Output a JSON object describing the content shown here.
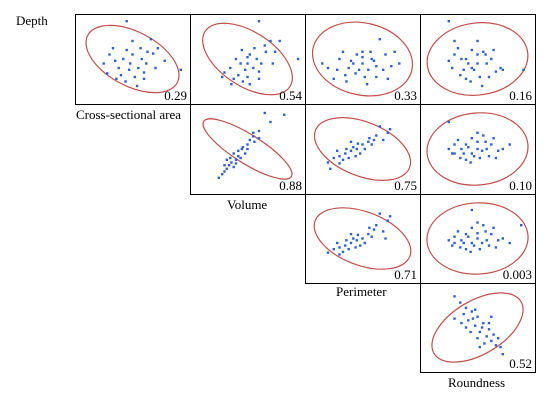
{
  "chart_data": {
    "type": "scatter",
    "title": "",
    "layout": "upper-triangular scatterplot matrix",
    "variables": [
      "Depth",
      "Cross-sectional area",
      "Volume",
      "Perimeter",
      "Roundness"
    ],
    "ellipse_color": "#c0504d",
    "point_color": "#2f5fd0",
    "panels": [
      {
        "row": "Depth",
        "col": "Cross-sectional area",
        "value": "0.29",
        "tilt": -0.6,
        "pts": [
          [
            0.45,
            0.08
          ],
          [
            0.63,
            0.42
          ],
          [
            0.35,
            0.52
          ],
          [
            0.48,
            0.55
          ],
          [
            0.55,
            0.6
          ],
          [
            0.4,
            0.68
          ],
          [
            0.6,
            0.72
          ],
          [
            0.3,
            0.45
          ],
          [
            0.66,
            0.28
          ],
          [
            0.5,
            0.3
          ],
          [
            0.28,
            0.66
          ],
          [
            0.7,
            0.6
          ],
          [
            0.45,
            0.4
          ],
          [
            0.58,
            0.5
          ],
          [
            0.38,
            0.6
          ],
          [
            0.52,
            0.7
          ],
          [
            0.62,
            0.55
          ],
          [
            0.33,
            0.38
          ],
          [
            0.47,
            0.62
          ],
          [
            0.57,
            0.38
          ],
          [
            0.42,
            0.5
          ],
          [
            0.5,
            0.45
          ],
          [
            0.36,
            0.72
          ],
          [
            0.68,
            0.44
          ],
          [
            0.25,
            0.55
          ],
          [
            0.54,
            0.8
          ],
          [
            0.44,
            0.75
          ],
          [
            0.6,
            0.65
          ],
          [
            0.72,
            0.38
          ],
          [
            0.78,
            0.52
          ],
          [
            0.92,
            0.62
          ]
        ]
      },
      {
        "row": "Depth",
        "col": "Volume",
        "value": "0.54",
        "tilt": -0.75,
        "pts": [
          [
            0.6,
            0.08
          ],
          [
            0.65,
            0.35
          ],
          [
            0.4,
            0.5
          ],
          [
            0.5,
            0.55
          ],
          [
            0.55,
            0.6
          ],
          [
            0.42,
            0.68
          ],
          [
            0.6,
            0.72
          ],
          [
            0.35,
            0.6
          ],
          [
            0.7,
            0.3
          ],
          [
            0.52,
            0.45
          ],
          [
            0.3,
            0.65
          ],
          [
            0.72,
            0.55
          ],
          [
            0.45,
            0.4
          ],
          [
            0.58,
            0.5
          ],
          [
            0.38,
            0.72
          ],
          [
            0.5,
            0.7
          ],
          [
            0.62,
            0.55
          ],
          [
            0.48,
            0.62
          ],
          [
            0.56,
            0.38
          ],
          [
            0.44,
            0.55
          ],
          [
            0.5,
            0.48
          ],
          [
            0.36,
            0.78
          ],
          [
            0.66,
            0.42
          ],
          [
            0.28,
            0.7
          ],
          [
            0.52,
            0.78
          ],
          [
            0.46,
            0.75
          ],
          [
            0.6,
            0.64
          ],
          [
            0.74,
            0.42
          ],
          [
            0.78,
            0.3
          ],
          [
            0.94,
            0.5
          ]
        ]
      },
      {
        "row": "Depth",
        "col": "Perimeter",
        "value": "0.33",
        "tilt": -0.25,
        "pts": [
          [
            0.65,
            0.28
          ],
          [
            0.3,
            0.5
          ],
          [
            0.4,
            0.52
          ],
          [
            0.5,
            0.55
          ],
          [
            0.55,
            0.62
          ],
          [
            0.35,
            0.68
          ],
          [
            0.62,
            0.7
          ],
          [
            0.28,
            0.62
          ],
          [
            0.7,
            0.45
          ],
          [
            0.5,
            0.42
          ],
          [
            0.25,
            0.72
          ],
          [
            0.75,
            0.58
          ],
          [
            0.45,
            0.45
          ],
          [
            0.58,
            0.5
          ],
          [
            0.38,
            0.6
          ],
          [
            0.52,
            0.7
          ],
          [
            0.62,
            0.58
          ],
          [
            0.33,
            0.42
          ],
          [
            0.47,
            0.62
          ],
          [
            0.57,
            0.42
          ],
          [
            0.42,
            0.55
          ],
          [
            0.5,
            0.48
          ],
          [
            0.36,
            0.75
          ],
          [
            0.68,
            0.62
          ],
          [
            0.2,
            0.6
          ],
          [
            0.54,
            0.78
          ],
          [
            0.44,
            0.66
          ],
          [
            0.6,
            0.52
          ],
          [
            0.72,
            0.72
          ],
          [
            0.78,
            0.42
          ],
          [
            0.82,
            0.55
          ],
          [
            0.15,
            0.55
          ]
        ]
      },
      {
        "row": "Depth",
        "col": "Roundness",
        "value": "0.16",
        "tilt": 0.15,
        "pts": [
          [
            0.25,
            0.08
          ],
          [
            0.55,
            0.42
          ],
          [
            0.4,
            0.5
          ],
          [
            0.5,
            0.55
          ],
          [
            0.45,
            0.6
          ],
          [
            0.35,
            0.68
          ],
          [
            0.6,
            0.7
          ],
          [
            0.3,
            0.45
          ],
          [
            0.62,
            0.5
          ],
          [
            0.5,
            0.3
          ],
          [
            0.28,
            0.6
          ],
          [
            0.7,
            0.6
          ],
          [
            0.45,
            0.4
          ],
          [
            0.58,
            0.55
          ],
          [
            0.38,
            0.62
          ],
          [
            0.52,
            0.7
          ],
          [
            0.42,
            0.55
          ],
          [
            0.33,
            0.38
          ],
          [
            0.47,
            0.62
          ],
          [
            0.57,
            0.45
          ],
          [
            0.36,
            0.5
          ],
          [
            0.5,
            0.45
          ],
          [
            0.4,
            0.72
          ],
          [
            0.66,
            0.64
          ],
          [
            0.25,
            0.52
          ],
          [
            0.54,
            0.8
          ],
          [
            0.44,
            0.75
          ],
          [
            0.64,
            0.4
          ],
          [
            0.72,
            0.62
          ],
          [
            0.3,
            0.3
          ],
          [
            0.9,
            0.62
          ]
        ]
      },
      {
        "row": "Cross-sectional area",
        "col": "Volume",
        "value": "0.88",
        "tilt": -0.72,
        "narrow": true,
        "pts": [
          [
            0.65,
            0.1
          ],
          [
            0.7,
            0.2
          ],
          [
            0.55,
            0.32
          ],
          [
            0.6,
            0.38
          ],
          [
            0.5,
            0.45
          ],
          [
            0.45,
            0.5
          ],
          [
            0.48,
            0.55
          ],
          [
            0.42,
            0.58
          ],
          [
            0.4,
            0.62
          ],
          [
            0.36,
            0.65
          ],
          [
            0.38,
            0.7
          ],
          [
            0.32,
            0.72
          ],
          [
            0.3,
            0.75
          ],
          [
            0.35,
            0.6
          ],
          [
            0.42,
            0.52
          ],
          [
            0.46,
            0.48
          ],
          [
            0.52,
            0.4
          ],
          [
            0.56,
            0.42
          ],
          [
            0.6,
            0.3
          ],
          [
            0.28,
            0.78
          ],
          [
            0.25,
            0.82
          ],
          [
            0.34,
            0.68
          ],
          [
            0.44,
            0.6
          ],
          [
            0.5,
            0.5
          ],
          [
            0.4,
            0.66
          ],
          [
            0.32,
            0.62
          ],
          [
            0.38,
            0.55
          ],
          [
            0.55,
            0.36
          ],
          [
            0.3,
            0.68
          ],
          [
            0.82,
            0.12
          ]
        ]
      },
      {
        "row": "Cross-sectional area",
        "col": "Perimeter",
        "value": "0.75",
        "tilt": -0.45,
        "pts": [
          [
            0.65,
            0.25
          ],
          [
            0.72,
            0.32
          ],
          [
            0.6,
            0.4
          ],
          [
            0.55,
            0.42
          ],
          [
            0.5,
            0.45
          ],
          [
            0.45,
            0.5
          ],
          [
            0.4,
            0.52
          ],
          [
            0.35,
            0.55
          ],
          [
            0.3,
            0.58
          ],
          [
            0.25,
            0.6
          ],
          [
            0.2,
            0.65
          ],
          [
            0.48,
            0.55
          ],
          [
            0.38,
            0.6
          ],
          [
            0.42,
            0.48
          ],
          [
            0.58,
            0.45
          ],
          [
            0.62,
            0.35
          ],
          [
            0.33,
            0.62
          ],
          [
            0.28,
            0.52
          ],
          [
            0.52,
            0.5
          ],
          [
            0.44,
            0.58
          ],
          [
            0.68,
            0.4
          ],
          [
            0.36,
            0.5
          ],
          [
            0.46,
            0.44
          ],
          [
            0.56,
            0.38
          ],
          [
            0.3,
            0.66
          ],
          [
            0.4,
            0.42
          ],
          [
            0.22,
            0.72
          ],
          [
            0.74,
            0.28
          ]
        ]
      },
      {
        "row": "Cross-sectional area",
        "col": "Roundness",
        "value": "0.10",
        "tilt": 0.1,
        "pts": [
          [
            0.25,
            0.2
          ],
          [
            0.55,
            0.35
          ],
          [
            0.4,
            0.45
          ],
          [
            0.5,
            0.5
          ],
          [
            0.45,
            0.55
          ],
          [
            0.35,
            0.6
          ],
          [
            0.6,
            0.58
          ],
          [
            0.3,
            0.45
          ],
          [
            0.62,
            0.45
          ],
          [
            0.5,
            0.32
          ],
          [
            0.28,
            0.55
          ],
          [
            0.68,
            0.52
          ],
          [
            0.45,
            0.38
          ],
          [
            0.58,
            0.5
          ],
          [
            0.38,
            0.55
          ],
          [
            0.52,
            0.6
          ],
          [
            0.42,
            0.48
          ],
          [
            0.33,
            0.4
          ],
          [
            0.47,
            0.58
          ],
          [
            0.57,
            0.42
          ],
          [
            0.36,
            0.5
          ],
          [
            0.5,
            0.42
          ],
          [
            0.4,
            0.62
          ],
          [
            0.66,
            0.6
          ],
          [
            0.25,
            0.5
          ],
          [
            0.54,
            0.52
          ],
          [
            0.44,
            0.65
          ],
          [
            0.64,
            0.38
          ],
          [
            0.72,
            0.5
          ],
          [
            0.3,
            0.55
          ],
          [
            0.78,
            0.45
          ]
        ]
      },
      {
        "row": "Volume",
        "col": "Perimeter",
        "value": "0.71",
        "tilt": -0.42,
        "pts": [
          [
            0.65,
            0.22
          ],
          [
            0.72,
            0.3
          ],
          [
            0.6,
            0.4
          ],
          [
            0.55,
            0.45
          ],
          [
            0.5,
            0.5
          ],
          [
            0.45,
            0.52
          ],
          [
            0.4,
            0.55
          ],
          [
            0.35,
            0.58
          ],
          [
            0.3,
            0.6
          ],
          [
            0.25,
            0.62
          ],
          [
            0.2,
            0.66
          ],
          [
            0.48,
            0.58
          ],
          [
            0.38,
            0.62
          ],
          [
            0.42,
            0.5
          ],
          [
            0.58,
            0.48
          ],
          [
            0.62,
            0.35
          ],
          [
            0.33,
            0.65
          ],
          [
            0.28,
            0.55
          ],
          [
            0.52,
            0.55
          ],
          [
            0.44,
            0.6
          ],
          [
            0.68,
            0.42
          ],
          [
            0.36,
            0.52
          ],
          [
            0.46,
            0.46
          ],
          [
            0.56,
            0.38
          ],
          [
            0.3,
            0.68
          ],
          [
            0.4,
            0.45
          ],
          [
            0.7,
            0.5
          ],
          [
            0.74,
            0.25
          ]
        ]
      },
      {
        "row": "Volume",
        "col": "Roundness",
        "value": "0.003",
        "tilt": 0.05,
        "pts": [
          [
            0.45,
            0.18
          ],
          [
            0.55,
            0.35
          ],
          [
            0.4,
            0.45
          ],
          [
            0.5,
            0.5
          ],
          [
            0.45,
            0.55
          ],
          [
            0.35,
            0.6
          ],
          [
            0.6,
            0.58
          ],
          [
            0.3,
            0.48
          ],
          [
            0.62,
            0.45
          ],
          [
            0.5,
            0.32
          ],
          [
            0.28,
            0.58
          ],
          [
            0.68,
            0.52
          ],
          [
            0.45,
            0.38
          ],
          [
            0.58,
            0.52
          ],
          [
            0.38,
            0.55
          ],
          [
            0.52,
            0.62
          ],
          [
            0.42,
            0.48
          ],
          [
            0.33,
            0.42
          ],
          [
            0.47,
            0.58
          ],
          [
            0.57,
            0.42
          ],
          [
            0.36,
            0.52
          ],
          [
            0.5,
            0.44
          ],
          [
            0.4,
            0.62
          ],
          [
            0.66,
            0.6
          ],
          [
            0.25,
            0.52
          ],
          [
            0.54,
            0.55
          ],
          [
            0.44,
            0.65
          ],
          [
            0.64,
            0.38
          ],
          [
            0.72,
            0.5
          ],
          [
            0.3,
            0.55
          ],
          [
            0.78,
            0.55
          ],
          [
            0.88,
            0.35
          ]
        ]
      },
      {
        "row": "Perimeter",
        "col": "Roundness",
        "value": "0.52",
        "tilt": 0.68,
        "pts": [
          [
            0.3,
            0.15
          ],
          [
            0.35,
            0.22
          ],
          [
            0.4,
            0.28
          ],
          [
            0.45,
            0.32
          ],
          [
            0.5,
            0.38
          ],
          [
            0.42,
            0.42
          ],
          [
            0.55,
            0.45
          ],
          [
            0.48,
            0.48
          ],
          [
            0.6,
            0.52
          ],
          [
            0.52,
            0.55
          ],
          [
            0.58,
            0.6
          ],
          [
            0.62,
            0.65
          ],
          [
            0.66,
            0.7
          ],
          [
            0.7,
            0.72
          ],
          [
            0.38,
            0.35
          ],
          [
            0.46,
            0.4
          ],
          [
            0.54,
            0.5
          ],
          [
            0.6,
            0.45
          ],
          [
            0.44,
            0.55
          ],
          [
            0.64,
            0.58
          ],
          [
            0.36,
            0.45
          ],
          [
            0.5,
            0.62
          ],
          [
            0.56,
            0.68
          ],
          [
            0.68,
            0.62
          ],
          [
            0.4,
            0.5
          ],
          [
            0.72,
            0.8
          ],
          [
            0.3,
            0.4
          ],
          [
            0.48,
            0.3
          ],
          [
            0.62,
            0.38
          ],
          [
            0.52,
            0.72
          ]
        ]
      }
    ]
  }
}
